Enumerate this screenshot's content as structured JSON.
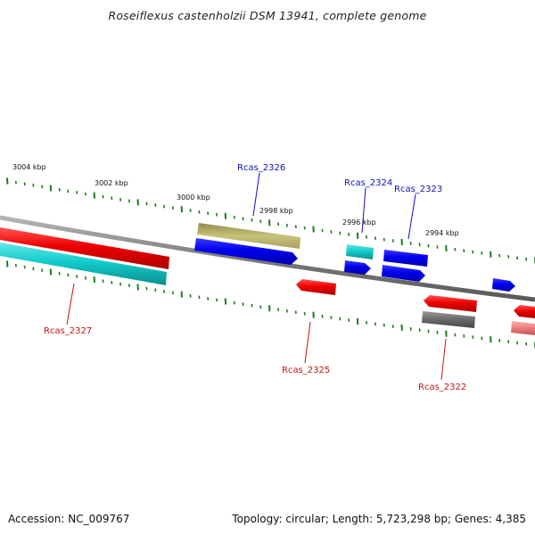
{
  "title": "Roseiflexus castenholzii DSM 13941, complete genome",
  "footer": {
    "accession": "Accession: NC_009767",
    "summary": "Topology: circular; Length: 5,723,298 bp; Genes: 4,385"
  },
  "colors": {
    "backbone": "#8a8a8a",
    "ticks": "#1f7a1f",
    "forward_label": "#1111bb",
    "reverse_label": "#cc1111",
    "red": "#ee0000",
    "blue": "#0000ee",
    "cyan": "#11cccc",
    "olive": "#bdb76b",
    "gray": "#6e6e6e",
    "pink": "#f08080"
  },
  "tick_labels": [
    "3004 kbp",
    "3002 kbp",
    "3000 kbp",
    "2998 kbp",
    "2996 kbp",
    "2994 kbp"
  ],
  "gene_labels": [
    "Rcas_2326",
    "Rcas_2324",
    "Rcas_2323",
    "Rcas_2327",
    "Rcas_2325",
    "Rcas_2322"
  ]
}
